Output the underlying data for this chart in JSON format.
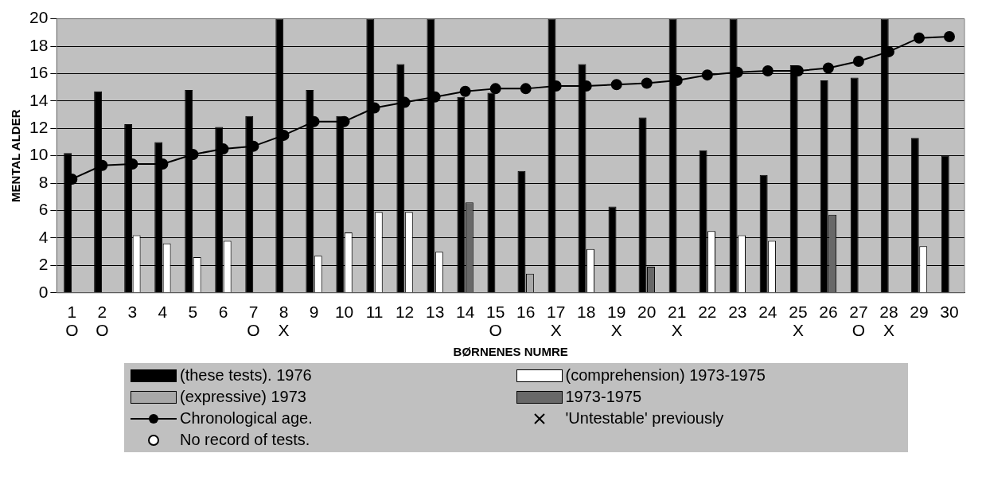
{
  "chart_data": {
    "type": "bar",
    "xlabel": "BØRNENES NUMRE",
    "ylabel": "MENTAL ALDER",
    "categories": [
      "1\nO",
      "2\nO",
      "3",
      "4",
      "5",
      "6",
      "7\nO",
      "8\nX",
      "9",
      "10",
      "11",
      "12",
      "13",
      "14",
      "15\nO",
      "16",
      "17\nX",
      "18",
      "19\nX",
      "20",
      "21\nX",
      "22",
      "23",
      "24",
      "25\nX",
      "26",
      "27\nO",
      "28\nX",
      "29",
      "30"
    ],
    "series": [
      {
        "name": "(these tests). 1976",
        "color": "#000000",
        "values": [
          10.2,
          14.7,
          12.3,
          11.0,
          14.8,
          12.1,
          12.9,
          20,
          14.8,
          12.9,
          20,
          16.7,
          20,
          14.3,
          14.6,
          8.9,
          20,
          16.7,
          6.3,
          12.8,
          20,
          10.4,
          20,
          8.6,
          16.6,
          15.5,
          15.7,
          20,
          11.3,
          10.0
        ]
      },
      {
        "name": "(comprehension) 1973-1975",
        "color": "#ffffff",
        "values": [
          null,
          null,
          4.2,
          3.6,
          2.6,
          3.8,
          null,
          null,
          2.7,
          4.4,
          5.9,
          5.9,
          3.0,
          null,
          null,
          null,
          null,
          3.2,
          null,
          null,
          null,
          4.5,
          4.2,
          3.8,
          null,
          null,
          null,
          null,
          3.4,
          null
        ]
      },
      {
        "name": "(expressive) 1973",
        "color": "#a8a8a8",
        "values": [
          null,
          null,
          null,
          null,
          null,
          null,
          null,
          null,
          null,
          null,
          null,
          null,
          null,
          null,
          null,
          1.4,
          null,
          null,
          null,
          null,
          null,
          null,
          null,
          null,
          null,
          null,
          null,
          null,
          null,
          null
        ]
      },
      {
        "name": "1973-1975",
        "color": "#686868",
        "values": [
          null,
          null,
          null,
          null,
          null,
          null,
          null,
          null,
          null,
          null,
          null,
          null,
          null,
          6.6,
          null,
          null,
          null,
          null,
          null,
          1.9,
          null,
          null,
          null,
          null,
          null,
          5.7,
          null,
          null,
          null,
          null
        ]
      },
      {
        "name": "Chronological age.",
        "type": "line",
        "color": "#000000",
        "marker": "circle",
        "values": [
          8.3,
          9.3,
          9.4,
          9.4,
          10.1,
          10.5,
          10.7,
          11.5,
          12.5,
          12.5,
          13.5,
          13.9,
          14.3,
          14.7,
          14.9,
          14.9,
          15.1,
          15.1,
          15.2,
          15.3,
          15.5,
          15.9,
          16.1,
          16.2,
          16.2,
          16.4,
          16.9,
          17.6,
          18.6,
          18.7
        ]
      }
    ],
    "ylim": [
      0,
      20
    ],
    "yticks": [
      0,
      2,
      4,
      6,
      8,
      10,
      12,
      14,
      16,
      18,
      20
    ],
    "grid": "y",
    "legend": "bottom",
    "annotations": [
      "'Untestable' previously",
      "No record of tests."
    ]
  }
}
